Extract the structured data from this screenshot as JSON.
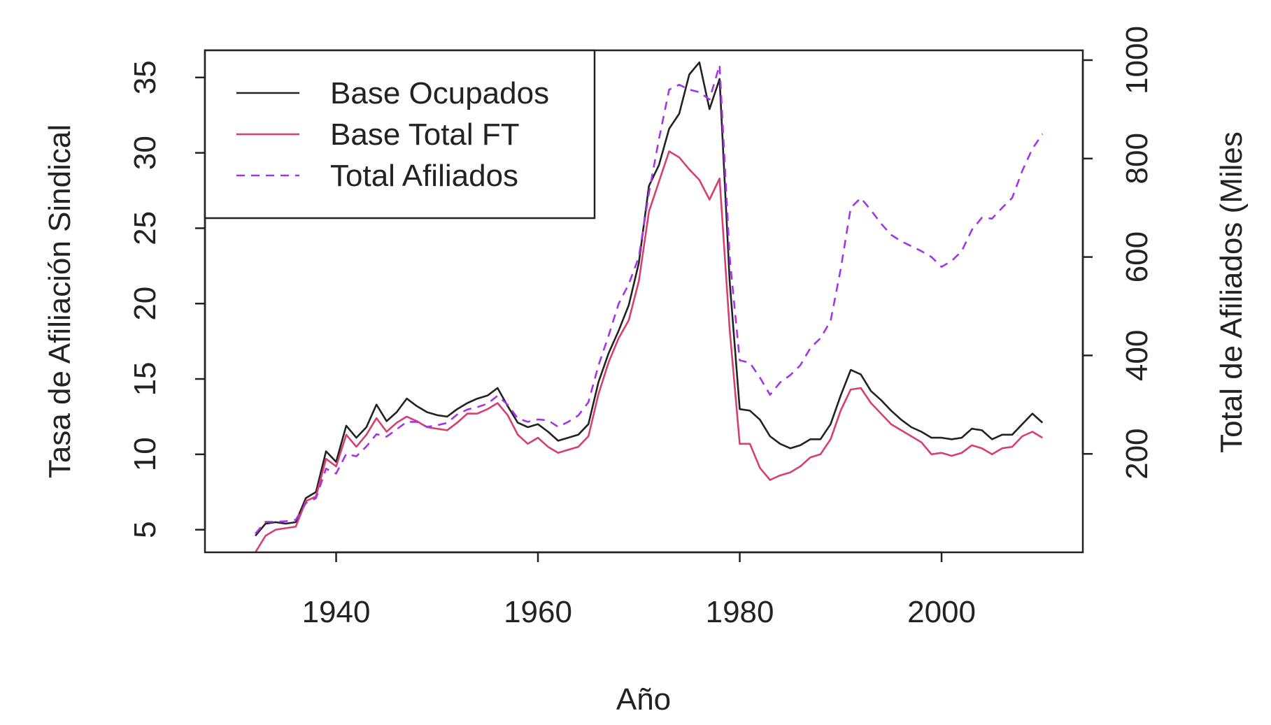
{
  "chart_data": {
    "type": "line",
    "title": "",
    "xlabel": "Año",
    "ylabel": "Tasa de Afiliación Sindical",
    "y2label": "Total de Afiliados (Miles",
    "xlim": [
      1927,
      2014
    ],
    "ylim": [
      3.5,
      36.8
    ],
    "y2lim": [
      0,
      1000
    ],
    "x_ticks": [
      1940,
      1960,
      1980,
      2000
    ],
    "y_ticks": [
      5,
      10,
      15,
      20,
      25,
      30,
      35
    ],
    "y2_ticks": [
      200,
      400,
      600,
      800,
      1000
    ],
    "legend_position": "top-left",
    "grid": false,
    "series": [
      {
        "name": "Base Ocupados",
        "color": "#222222",
        "dash": "solid",
        "axis": "left",
        "points": [
          [
            1932,
            4.6
          ],
          [
            1933,
            5.4
          ],
          [
            1934,
            5.5
          ],
          [
            1935,
            5.4
          ],
          [
            1936,
            5.5
          ],
          [
            1937,
            7.1
          ],
          [
            1938,
            7.5
          ],
          [
            1939,
            10.2
          ],
          [
            1940,
            9.5
          ],
          [
            1941,
            11.9
          ],
          [
            1942,
            11.1
          ],
          [
            1943,
            11.8
          ],
          [
            1944,
            13.3
          ],
          [
            1945,
            12.2
          ],
          [
            1946,
            12.8
          ],
          [
            1947,
            13.7
          ],
          [
            1948,
            13.2
          ],
          [
            1949,
            12.8
          ],
          [
            1950,
            12.6
          ],
          [
            1951,
            12.5
          ],
          [
            1952,
            13.0
          ],
          [
            1953,
            13.4
          ],
          [
            1954,
            13.7
          ],
          [
            1955,
            13.9
          ],
          [
            1956,
            14.4
          ],
          [
            1957,
            13.2
          ],
          [
            1958,
            12.1
          ],
          [
            1959,
            11.8
          ],
          [
            1960,
            12.0
          ],
          [
            1961,
            11.5
          ],
          [
            1962,
            10.9
          ],
          [
            1963,
            11.1
          ],
          [
            1964,
            11.3
          ],
          [
            1965,
            12.0
          ],
          [
            1966,
            14.8
          ],
          [
            1967,
            16.7
          ],
          [
            1968,
            18.2
          ],
          [
            1969,
            19.9
          ],
          [
            1970,
            22.7
          ],
          [
            1971,
            27.8
          ],
          [
            1972,
            29.2
          ],
          [
            1973,
            31.6
          ],
          [
            1974,
            32.6
          ],
          [
            1975,
            35.2
          ],
          [
            1976,
            36.0
          ],
          [
            1977,
            32.9
          ],
          [
            1978,
            34.9
          ],
          [
            1979,
            21.5
          ],
          [
            1980,
            13.0
          ],
          [
            1981,
            12.9
          ],
          [
            1982,
            12.3
          ],
          [
            1983,
            11.2
          ],
          [
            1984,
            10.7
          ],
          [
            1985,
            10.4
          ],
          [
            1986,
            10.6
          ],
          [
            1987,
            11.0
          ],
          [
            1988,
            11.0
          ],
          [
            1989,
            12.0
          ],
          [
            1990,
            13.9
          ],
          [
            1991,
            15.6
          ],
          [
            1992,
            15.3
          ],
          [
            1993,
            14.2
          ],
          [
            1994,
            13.6
          ],
          [
            1995,
            12.9
          ],
          [
            1996,
            12.3
          ],
          [
            1997,
            11.8
          ],
          [
            1998,
            11.5
          ],
          [
            1999,
            11.1
          ],
          [
            2000,
            11.1
          ],
          [
            2001,
            11.0
          ],
          [
            2002,
            11.1
          ],
          [
            2003,
            11.7
          ],
          [
            2004,
            11.6
          ],
          [
            2005,
            11.0
          ],
          [
            2006,
            11.3
          ],
          [
            2007,
            11.3
          ],
          [
            2008,
            12.0
          ],
          [
            2009,
            12.7
          ],
          [
            2010,
            12.1
          ]
        ]
      },
      {
        "name": "Base Total FT",
        "color": "#d6406e",
        "dash": "solid",
        "axis": "left",
        "points": [
          [
            1932,
            3.5
          ],
          [
            1933,
            4.6
          ],
          [
            1934,
            5.0
          ],
          [
            1935,
            5.1
          ],
          [
            1936,
            5.2
          ],
          [
            1937,
            6.9
          ],
          [
            1938,
            7.2
          ],
          [
            1939,
            9.7
          ],
          [
            1940,
            9.2
          ],
          [
            1941,
            11.3
          ],
          [
            1942,
            10.5
          ],
          [
            1943,
            11.3
          ],
          [
            1944,
            12.4
          ],
          [
            1945,
            11.5
          ],
          [
            1946,
            12.1
          ],
          [
            1947,
            12.5
          ],
          [
            1948,
            12.2
          ],
          [
            1949,
            11.8
          ],
          [
            1950,
            11.7
          ],
          [
            1951,
            11.6
          ],
          [
            1952,
            12.1
          ],
          [
            1953,
            12.7
          ],
          [
            1954,
            12.7
          ],
          [
            1955,
            13.0
          ],
          [
            1956,
            13.4
          ],
          [
            1957,
            12.6
          ],
          [
            1958,
            11.3
          ],
          [
            1959,
            10.7
          ],
          [
            1960,
            11.1
          ],
          [
            1961,
            10.5
          ],
          [
            1962,
            10.1
          ],
          [
            1963,
            10.3
          ],
          [
            1964,
            10.5
          ],
          [
            1965,
            11.2
          ],
          [
            1966,
            14.0
          ],
          [
            1967,
            16.1
          ],
          [
            1968,
            17.7
          ],
          [
            1969,
            18.9
          ],
          [
            1970,
            21.5
          ],
          [
            1971,
            26.1
          ],
          [
            1972,
            28.1
          ],
          [
            1973,
            30.1
          ],
          [
            1974,
            29.7
          ],
          [
            1975,
            28.9
          ],
          [
            1976,
            28.2
          ],
          [
            1977,
            26.9
          ],
          [
            1978,
            28.3
          ],
          [
            1979,
            18.3
          ],
          [
            1980,
            10.7
          ],
          [
            1981,
            10.7
          ],
          [
            1982,
            9.1
          ],
          [
            1983,
            8.3
          ],
          [
            1984,
            8.6
          ],
          [
            1985,
            8.8
          ],
          [
            1986,
            9.2
          ],
          [
            1987,
            9.8
          ],
          [
            1988,
            10.0
          ],
          [
            1989,
            11.0
          ],
          [
            1990,
            12.9
          ],
          [
            1991,
            14.3
          ],
          [
            1992,
            14.4
          ],
          [
            1993,
            13.4
          ],
          [
            1994,
            12.7
          ],
          [
            1995,
            12.0
          ],
          [
            1996,
            11.6
          ],
          [
            1997,
            11.2
          ],
          [
            1998,
            10.8
          ],
          [
            1999,
            10.0
          ],
          [
            2000,
            10.1
          ],
          [
            2001,
            9.9
          ],
          [
            2002,
            10.1
          ],
          [
            2003,
            10.6
          ],
          [
            2004,
            10.4
          ],
          [
            2005,
            10.0
          ],
          [
            2006,
            10.4
          ],
          [
            2007,
            10.5
          ],
          [
            2008,
            11.2
          ],
          [
            2009,
            11.5
          ],
          [
            2010,
            11.1
          ]
        ]
      },
      {
        "name": "Total Afiliados",
        "color": "#a335e8",
        "dash": "dashed",
        "axis": "right",
        "points": [
          [
            1932,
            38
          ],
          [
            1933,
            62
          ],
          [
            1934,
            62
          ],
          [
            1935,
            63
          ],
          [
            1936,
            66
          ],
          [
            1937,
            100
          ],
          [
            1938,
            110
          ],
          [
            1939,
            170
          ],
          [
            1940,
            160
          ],
          [
            1941,
            200
          ],
          [
            1942,
            195
          ],
          [
            1943,
            215
          ],
          [
            1944,
            240
          ],
          [
            1945,
            235
          ],
          [
            1946,
            250
          ],
          [
            1947,
            265
          ],
          [
            1948,
            265
          ],
          [
            1949,
            255
          ],
          [
            1950,
            258
          ],
          [
            1951,
            263
          ],
          [
            1952,
            280
          ],
          [
            1953,
            290
          ],
          [
            1954,
            295
          ],
          [
            1955,
            302
          ],
          [
            1956,
            318
          ],
          [
            1957,
            300
          ],
          [
            1958,
            272
          ],
          [
            1959,
            265
          ],
          [
            1960,
            270
          ],
          [
            1961,
            268
          ],
          [
            1962,
            255
          ],
          [
            1963,
            265
          ],
          [
            1964,
            278
          ],
          [
            1965,
            305
          ],
          [
            1966,
            380
          ],
          [
            1967,
            440
          ],
          [
            1968,
            505
          ],
          [
            1969,
            545
          ],
          [
            1970,
            600
          ],
          [
            1971,
            730
          ],
          [
            1972,
            840
          ],
          [
            1973,
            940
          ],
          [
            1974,
            950
          ],
          [
            1975,
            940
          ],
          [
            1976,
            935
          ],
          [
            1977,
            920
          ],
          [
            1978,
            990
          ],
          [
            1979,
            600
          ],
          [
            1980,
            390
          ],
          [
            1981,
            385
          ],
          [
            1982,
            355
          ],
          [
            1983,
            320
          ],
          [
            1984,
            345
          ],
          [
            1985,
            360
          ],
          [
            1986,
            380
          ],
          [
            1987,
            415
          ],
          [
            1988,
            435
          ],
          [
            1989,
            470
          ],
          [
            1990,
            575
          ],
          [
            1991,
            700
          ],
          [
            1992,
            720
          ],
          [
            1993,
            695
          ],
          [
            1994,
            668
          ],
          [
            1995,
            645
          ],
          [
            1996,
            632
          ],
          [
            1997,
            622
          ],
          [
            1998,
            612
          ],
          [
            1999,
            600
          ],
          [
            2000,
            580
          ],
          [
            2001,
            592
          ],
          [
            2002,
            612
          ],
          [
            2003,
            655
          ],
          [
            2004,
            680
          ],
          [
            2005,
            678
          ],
          [
            2006,
            700
          ],
          [
            2007,
            720
          ],
          [
            2008,
            775
          ],
          [
            2009,
            820
          ],
          [
            2010,
            850
          ]
        ]
      }
    ]
  }
}
